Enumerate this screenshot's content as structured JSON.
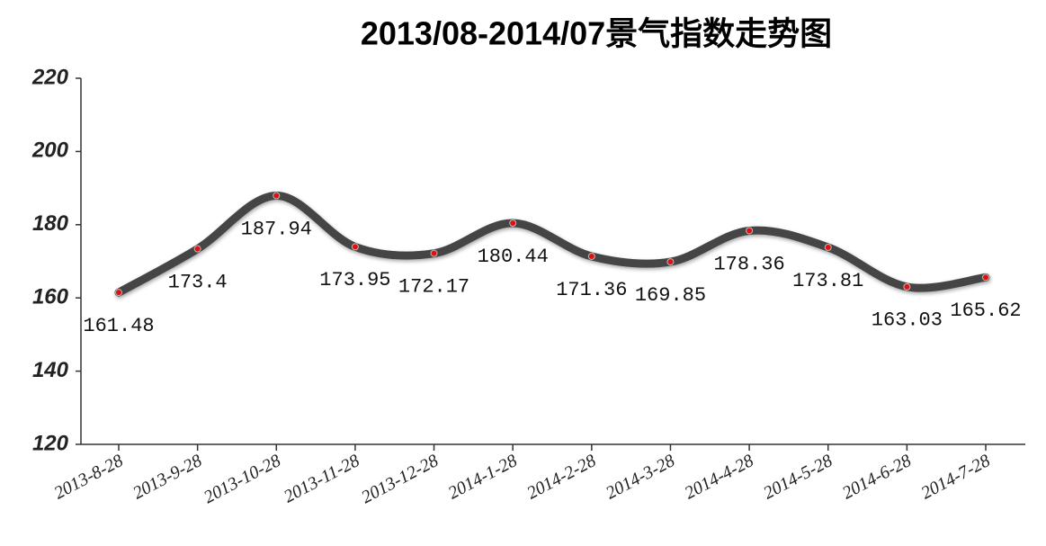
{
  "chart_data": {
    "type": "line",
    "title": "2013/08-2014/07景气指数走势图",
    "categories": [
      "2013-8-28",
      "2013-9-28",
      "2013-10-28",
      "2013-11-28",
      "2013-12-28",
      "2014-1-28",
      "2014-2-28",
      "2014-3-28",
      "2014-4-28",
      "2014-5-28",
      "2014-6-28",
      "2014-7-28"
    ],
    "series": [
      {
        "color": "#444444",
        "values": [
          161.48,
          173.4,
          187.94,
          173.95,
          172.17,
          180.44,
          171.36,
          169.85,
          178.36,
          173.81,
          163.03,
          165.62
        ]
      }
    ],
    "ylim": [
      120,
      220
    ],
    "yticks": [
      120,
      140,
      160,
      180,
      200,
      220
    ],
    "grid": false
  }
}
